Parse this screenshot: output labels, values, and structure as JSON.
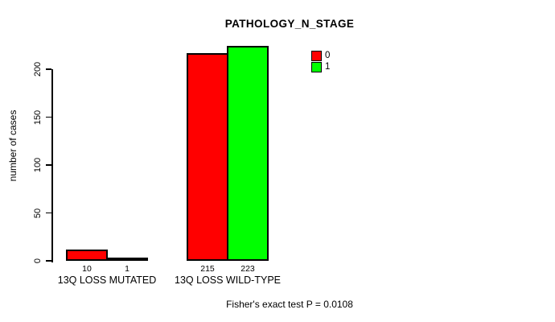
{
  "chart_data": {
    "type": "bar",
    "title": "PATHOLOGY_N_STAGE",
    "ylabel": "number of cases",
    "footer": "Fisher's exact test P = 0.0108",
    "categories": [
      "13Q LOSS MUTATED",
      "13Q LOSS WILD-TYPE"
    ],
    "series": [
      {
        "name": "0",
        "color": "#ff0000",
        "values": [
          10,
          215
        ]
      },
      {
        "name": "1",
        "color": "#00ff00",
        "values": [
          1,
          223
        ]
      }
    ],
    "value_labels": [
      [
        "10",
        "215"
      ],
      [
        "1",
        "223"
      ]
    ],
    "yticks": [
      "0",
      "50",
      "100",
      "150",
      "200"
    ],
    "ylim": [
      0,
      200
    ],
    "grid": false,
    "legend_position": "top-right",
    "colors": {
      "series0": "#ff0000",
      "series1": "#00ff00",
      "axis": "#000000",
      "background": "#ffffff"
    }
  }
}
